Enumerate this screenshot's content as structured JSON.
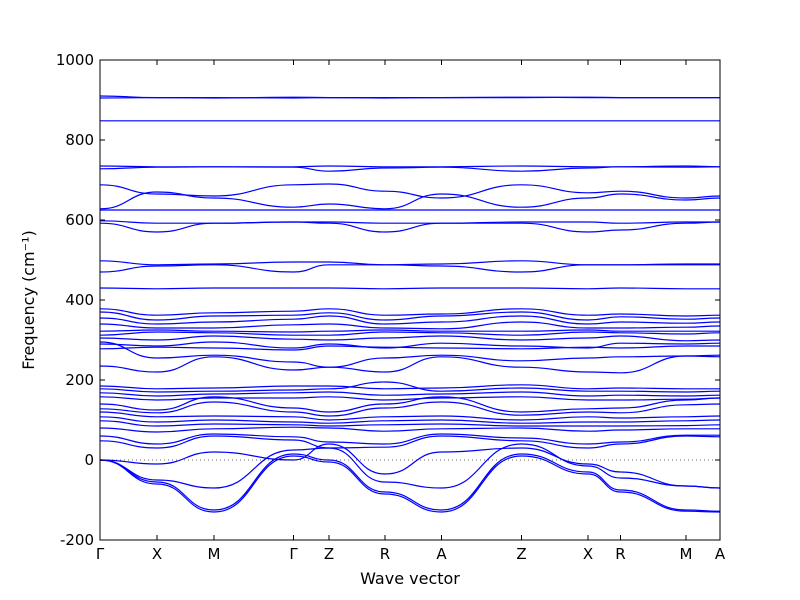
{
  "chart_data": {
    "type": "line",
    "title": "",
    "xlabel": "Wave vector",
    "ylabel": "Frequency (cm⁻¹)",
    "ylim": [
      -200,
      1000
    ],
    "yticks": [
      -200,
      0,
      200,
      400,
      600,
      800,
      1000
    ],
    "xlim": [
      0,
      12.4
    ],
    "xticks": [
      {
        "label": "Γ",
        "x": 0.0
      },
      {
        "label": "X",
        "x": 1.14
      },
      {
        "label": "M",
        "x": 2.28
      },
      {
        "label": "Γ",
        "x": 3.87
      },
      {
        "label": "Z",
        "x": 4.58
      },
      {
        "label": "R",
        "x": 5.7
      },
      {
        "label": "A",
        "x": 6.83
      },
      {
        "label": "Z",
        "x": 8.43
      },
      {
        "label": "X",
        "x": 9.76
      },
      {
        "label": "R",
        "x": 10.41
      },
      {
        "label": "M",
        "x": 11.72
      },
      {
        "label": "A",
        "x": 12.4
      }
    ],
    "grid": false,
    "line_color": "#0000ff",
    "zero_line": {
      "y": 0,
      "style": "dotted"
    },
    "series": [
      {
        "x": [
          0,
          1.14,
          2.28,
          3.87,
          4.58,
          5.7,
          6.83,
          8.43,
          9.76,
          10.41,
          11.72,
          12.4
        ],
        "values": [
          910,
          906,
          905,
          907,
          906,
          905,
          906,
          906,
          907,
          906,
          906,
          906
        ]
      },
      {
        "x": [
          0,
          1.14,
          2.28,
          3.87,
          4.58,
          5.7,
          6.83,
          8.43,
          9.76,
          10.41,
          11.72,
          12.4
        ],
        "values": [
          905,
          906,
          906,
          905,
          906,
          906,
          906,
          907,
          906,
          906,
          906,
          906
        ]
      },
      {
        "x": [
          0,
          1.14,
          2.28,
          3.87,
          4.58,
          5.7,
          6.83,
          8.43,
          9.76,
          10.41,
          11.72,
          12.4
        ],
        "values": [
          848,
          848,
          848,
          848,
          848,
          848,
          848,
          848,
          848,
          848,
          848,
          848
        ]
      },
      {
        "x": [
          0,
          1.14,
          2.28,
          3.87,
          4.58,
          5.7,
          6.83,
          8.43,
          9.76,
          10.41,
          11.72,
          12.4
        ],
        "values": [
          735,
          733,
          733,
          733,
          735,
          733,
          733,
          735,
          733,
          733,
          735,
          733
        ]
      },
      {
        "x": [
          0,
          1.14,
          2.28,
          3.87,
          4.58,
          5.7,
          6.83,
          8.43,
          9.76,
          10.41,
          11.72,
          12.4
        ],
        "values": [
          728,
          732,
          733,
          732,
          722,
          730,
          732,
          722,
          730,
          733,
          732,
          733
        ]
      },
      {
        "x": [
          0,
          1.14,
          2.28,
          3.87,
          4.58,
          5.7,
          6.83,
          8.43,
          9.76,
          10.41,
          11.72,
          12.4
        ],
        "values": [
          688,
          665,
          660,
          688,
          690,
          672,
          655,
          688,
          668,
          672,
          655,
          660
        ]
      },
      {
        "x": [
          0,
          1.14,
          2.28,
          3.87,
          4.58,
          5.7,
          6.83,
          8.43,
          9.76,
          10.41,
          11.72,
          12.4
        ],
        "values": [
          628,
          670,
          655,
          632,
          640,
          628,
          665,
          632,
          655,
          665,
          650,
          655
        ]
      },
      {
        "x": [
          0,
          1.14,
          2.28,
          3.87,
          4.58,
          5.7,
          6.83,
          8.43,
          9.76,
          10.41,
          11.72,
          12.4
        ],
        "values": [
          625,
          625,
          625,
          625,
          625,
          625,
          625,
          625,
          625,
          625,
          625,
          625
        ]
      },
      {
        "x": [
          0,
          1.14,
          2.28,
          3.87,
          4.58,
          5.7,
          6.83,
          8.43,
          9.76,
          10.41,
          11.72,
          12.4
        ],
        "values": [
          598,
          592,
          592,
          595,
          595,
          592,
          592,
          595,
          595,
          592,
          595,
          595
        ]
      },
      {
        "x": [
          0,
          1.14,
          2.28,
          3.87,
          4.58,
          5.7,
          6.83,
          8.43,
          9.76,
          10.41,
          11.72,
          12.4
        ],
        "values": [
          592,
          570,
          592,
          595,
          592,
          570,
          592,
          592,
          570,
          575,
          592,
          595
        ]
      },
      {
        "x": [
          0,
          1.14,
          2.28,
          3.87,
          4.58,
          5.7,
          6.83,
          8.43,
          9.76,
          10.41,
          11.72,
          12.4
        ],
        "values": [
          498,
          488,
          490,
          495,
          495,
          488,
          490,
          498,
          488,
          488,
          490,
          490
        ]
      },
      {
        "x": [
          0,
          1.14,
          2.28,
          3.87,
          4.58,
          5.7,
          6.83,
          8.43,
          9.76,
          10.41,
          11.72,
          12.4
        ],
        "values": [
          470,
          485,
          488,
          470,
          488,
          488,
          485,
          470,
          488,
          488,
          488,
          488
        ]
      },
      {
        "x": [
          0,
          1.14,
          2.28,
          3.87,
          4.58,
          5.7,
          6.83,
          8.43,
          9.76,
          10.41,
          11.72,
          12.4
        ],
        "values": [
          430,
          428,
          430,
          430,
          430,
          428,
          430,
          430,
          428,
          430,
          428,
          428
        ]
      },
      {
        "x": [
          0,
          1.14,
          2.28,
          3.87,
          4.58,
          5.7,
          6.83,
          8.43,
          9.76,
          10.41,
          11.72,
          12.4
        ],
        "values": [
          378,
          362,
          368,
          372,
          378,
          362,
          365,
          378,
          362,
          365,
          360,
          362
        ]
      },
      {
        "x": [
          0,
          1.14,
          2.28,
          3.87,
          4.58,
          5.7,
          6.83,
          8.43,
          9.76,
          10.41,
          11.72,
          12.4
        ],
        "values": [
          370,
          350,
          360,
          362,
          368,
          350,
          360,
          370,
          350,
          358,
          352,
          355
        ]
      },
      {
        "x": [
          0,
          1.14,
          2.28,
          3.87,
          4.58,
          5.7,
          6.83,
          8.43,
          9.76,
          10.41,
          11.72,
          12.4
        ],
        "values": [
          355,
          340,
          345,
          352,
          360,
          340,
          345,
          360,
          340,
          345,
          342,
          345
        ]
      },
      {
        "x": [
          0,
          1.14,
          2.28,
          3.87,
          4.58,
          5.7,
          6.83,
          8.43,
          9.76,
          10.41,
          11.72,
          12.4
        ],
        "values": [
          340,
          330,
          330,
          338,
          340,
          330,
          328,
          345,
          330,
          330,
          332,
          335
        ]
      },
      {
        "x": [
          0,
          1.14,
          2.28,
          3.87,
          4.58,
          5.7,
          6.83,
          8.43,
          9.76,
          10.41,
          11.72,
          12.4
        ],
        "values": [
          322,
          325,
          322,
          320,
          322,
          325,
          322,
          322,
          325,
          322,
          322,
          322
        ]
      },
      {
        "x": [
          0,
          1.14,
          2.28,
          3.87,
          4.58,
          5.7,
          6.83,
          8.43,
          9.76,
          10.41,
          11.72,
          12.4
        ],
        "values": [
          312,
          320,
          318,
          312,
          312,
          320,
          318,
          312,
          320,
          318,
          315,
          318
        ]
      },
      {
        "x": [
          0,
          1.14,
          2.28,
          3.87,
          4.58,
          5.7,
          6.83,
          8.43,
          9.76,
          10.41,
          11.72,
          12.4
        ],
        "values": [
          305,
          300,
          310,
          302,
          300,
          305,
          310,
          300,
          305,
          310,
          298,
          300
        ]
      },
      {
        "x": [
          0,
          1.14,
          2.28,
          3.87,
          4.58,
          5.7,
          6.83,
          8.43,
          9.76,
          10.41,
          11.72,
          12.4
        ],
        "values": [
          290,
          285,
          295,
          280,
          290,
          280,
          292,
          285,
          280,
          292,
          290,
          292
        ]
      },
      {
        "x": [
          0,
          1.14,
          2.28,
          3.87,
          4.58,
          5.7,
          6.83,
          8.43,
          9.76,
          10.41,
          11.72,
          12.4
        ],
        "values": [
          278,
          282,
          280,
          275,
          285,
          282,
          280,
          278,
          282,
          280,
          285,
          285
        ]
      },
      {
        "x": [
          0,
          1.14,
          2.28,
          3.87,
          4.58,
          5.7,
          6.83,
          8.43,
          9.76,
          10.41,
          11.72,
          12.4
        ],
        "values": [
          295,
          255,
          262,
          245,
          232,
          255,
          262,
          248,
          255,
          258,
          260,
          262
        ]
      },
      {
        "x": [
          0,
          1.14,
          2.28,
          3.87,
          4.58,
          5.7,
          6.83,
          8.43,
          9.76,
          10.41,
          11.72,
          12.4
        ],
        "values": [
          235,
          220,
          258,
          225,
          232,
          220,
          258,
          232,
          220,
          218,
          260,
          258
        ]
      },
      {
        "x": [
          0,
          1.14,
          2.28,
          3.87,
          4.58,
          5.7,
          6.83,
          8.43,
          9.76,
          10.41,
          11.72,
          12.4
        ],
        "values": [
          185,
          178,
          180,
          185,
          185,
          178,
          180,
          188,
          178,
          180,
          178,
          178
        ]
      },
      {
        "x": [
          0,
          1.14,
          2.28,
          3.87,
          4.58,
          5.7,
          6.83,
          8.43,
          9.76,
          10.41,
          11.72,
          12.4
        ],
        "values": [
          178,
          170,
          172,
          175,
          178,
          195,
          172,
          180,
          172,
          172,
          170,
          172
        ]
      },
      {
        "x": [
          0,
          1.14,
          2.28,
          3.87,
          4.58,
          5.7,
          6.83,
          8.43,
          9.76,
          10.41,
          11.72,
          12.4
        ],
        "values": [
          168,
          160,
          165,
          168,
          170,
          162,
          165,
          170,
          160,
          162,
          160,
          162
        ]
      },
      {
        "x": [
          0,
          1.14,
          2.28,
          3.87,
          4.58,
          5.7,
          6.83,
          8.43,
          9.76,
          10.41,
          11.72,
          12.4
        ],
        "values": [
          158,
          150,
          155,
          155,
          158,
          150,
          155,
          158,
          150,
          150,
          152,
          155
        ]
      },
      {
        "x": [
          0,
          1.14,
          2.28,
          3.87,
          4.58,
          5.7,
          6.83,
          8.43,
          9.76,
          10.41,
          11.72,
          12.4
        ],
        "values": [
          140,
          125,
          158,
          130,
          120,
          140,
          158,
          120,
          128,
          130,
          150,
          155
        ]
      },
      {
        "x": [
          0,
          1.14,
          2.28,
          3.87,
          4.58,
          5.7,
          6.83,
          8.43,
          9.76,
          10.41,
          11.72,
          12.4
        ],
        "values": [
          128,
          118,
          145,
          120,
          110,
          130,
          145,
          112,
          120,
          118,
          138,
          140
        ]
      },
      {
        "x": [
          0,
          1.14,
          2.28,
          3.87,
          4.58,
          5.7,
          6.83,
          8.43,
          9.76,
          10.41,
          11.72,
          12.4
        ],
        "values": [
          120,
          108,
          110,
          108,
          100,
          108,
          110,
          100,
          108,
          105,
          108,
          110
        ]
      },
      {
        "x": [
          0,
          1.14,
          2.28,
          3.87,
          4.58,
          5.7,
          6.83,
          8.43,
          9.76,
          10.41,
          11.72,
          12.4
        ],
        "values": [
          108,
          95,
          100,
          95,
          92,
          98,
          100,
          92,
          95,
          95,
          98,
          100
        ]
      },
      {
        "x": [
          0,
          1.14,
          2.28,
          3.87,
          4.58,
          5.7,
          6.83,
          8.43,
          9.76,
          10.41,
          11.72,
          12.4
        ],
        "values": [
          98,
          85,
          90,
          88,
          85,
          88,
          90,
          85,
          85,
          85,
          86,
          88
        ]
      },
      {
        "x": [
          0,
          1.14,
          2.28,
          3.87,
          4.58,
          5.7,
          6.83,
          8.43,
          9.76,
          10.41,
          11.72,
          12.4
        ],
        "values": [
          80,
          70,
          78,
          82,
          80,
          72,
          78,
          80,
          72,
          75,
          78,
          78
        ]
      },
      {
        "x": [
          0,
          1.14,
          2.28,
          3.87,
          4.58,
          5.7,
          6.83,
          8.43,
          9.76,
          10.41,
          11.72,
          12.4
        ],
        "values": [
          60,
          40,
          65,
          58,
          45,
          40,
          65,
          55,
          40,
          45,
          62,
          62
        ]
      },
      {
        "x": [
          0,
          1.14,
          2.28,
          3.87,
          4.58,
          5.7,
          6.83,
          8.43,
          9.76,
          10.41,
          11.72,
          12.4
        ],
        "values": [
          48,
          30,
          60,
          50,
          30,
          32,
          60,
          48,
          30,
          40,
          60,
          58
        ]
      },
      {
        "x": [
          0,
          1.14,
          2.28,
          3.87,
          4.58,
          5.7,
          6.83,
          8.43,
          9.76,
          10.41,
          11.72,
          12.4
        ],
        "values": [
          0,
          -10,
          20,
          0,
          40,
          -35,
          20,
          30,
          -10,
          -30,
          -65,
          -70
        ]
      },
      {
        "x": [
          0,
          1.14,
          2.28,
          3.87,
          4.58,
          5.7,
          6.83,
          8.43,
          9.76,
          10.41,
          11.72,
          12.4
        ],
        "values": [
          0,
          -50,
          -70,
          25,
          30,
          -55,
          -70,
          40,
          -15,
          -45,
          -65,
          -70
        ]
      },
      {
        "x": [
          0,
          1.14,
          2.28,
          3.87,
          4.58,
          5.7,
          6.83,
          8.43,
          9.76,
          10.41,
          11.72,
          12.4
        ],
        "values": [
          0,
          -55,
          -125,
          15,
          0,
          -80,
          -125,
          15,
          -30,
          -75,
          -125,
          -128
        ]
      },
      {
        "x": [
          0,
          1.14,
          2.28,
          3.87,
          4.58,
          5.7,
          6.83,
          8.43,
          9.76,
          10.41,
          11.72,
          12.4
        ],
        "values": [
          0,
          -60,
          -130,
          10,
          -5,
          -85,
          -130,
          10,
          -35,
          -80,
          -128,
          -130
        ]
      }
    ]
  }
}
